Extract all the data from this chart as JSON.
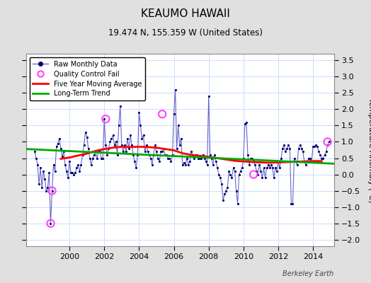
{
  "title": "KEAUMO HAWAII",
  "subtitle": "19.474 N, 155.359 W (United States)",
  "ylabel": "Temperature Anomaly (°C)",
  "watermark": "Berkeley Earth",
  "xlim": [
    1997.5,
    2015.2
  ],
  "ylim": [
    -2.2,
    3.7
  ],
  "yticks": [
    -2,
    -1.5,
    -1,
    -0.5,
    0,
    0.5,
    1,
    1.5,
    2,
    2.5,
    3,
    3.5
  ],
  "xticks": [
    2000,
    2002,
    2004,
    2006,
    2008,
    2010,
    2012,
    2014
  ],
  "fig_bg_color": "#e0e0e0",
  "plot_bg_color": "#ffffff",
  "raw_dot_color": "#000066",
  "raw_line_color": "#6666cc",
  "ma_color": "#ff0000",
  "trend_color": "#00aa00",
  "qc_color": "#ff44ff",
  "grid_color": "#ccddff",
  "raw_x": [
    1998.0,
    1998.083,
    1998.167,
    1998.25,
    1998.333,
    1998.417,
    1998.5,
    1998.583,
    1998.667,
    1998.75,
    1998.833,
    1998.917,
    1999.0,
    1999.083,
    1999.167,
    1999.25,
    1999.333,
    1999.417,
    1999.5,
    1999.583,
    1999.667,
    1999.75,
    1999.833,
    1999.917,
    2000.0,
    2000.083,
    2000.167,
    2000.25,
    2000.333,
    2000.417,
    2000.5,
    2000.583,
    2000.667,
    2000.75,
    2000.833,
    2000.917,
    2001.0,
    2001.083,
    2001.167,
    2001.25,
    2001.333,
    2001.417,
    2001.5,
    2001.583,
    2001.667,
    2001.75,
    2001.833,
    2001.917,
    2002.0,
    2002.083,
    2002.167,
    2002.25,
    2002.333,
    2002.417,
    2002.5,
    2002.583,
    2002.667,
    2002.75,
    2002.833,
    2002.917,
    2003.0,
    2003.083,
    2003.167,
    2003.25,
    2003.333,
    2003.417,
    2003.5,
    2003.583,
    2003.667,
    2003.75,
    2003.833,
    2003.917,
    2004.0,
    2004.083,
    2004.167,
    2004.25,
    2004.333,
    2004.417,
    2004.5,
    2004.583,
    2004.667,
    2004.75,
    2004.833,
    2004.917,
    2005.0,
    2005.083,
    2005.167,
    2005.25,
    2005.333,
    2005.417,
    2005.5,
    2005.583,
    2005.667,
    2005.75,
    2005.833,
    2005.917,
    2006.0,
    2006.083,
    2006.167,
    2006.25,
    2006.333,
    2006.417,
    2006.5,
    2006.583,
    2006.667,
    2006.75,
    2006.833,
    2006.917,
    2007.0,
    2007.083,
    2007.167,
    2007.25,
    2007.333,
    2007.417,
    2007.5,
    2007.583,
    2007.667,
    2007.75,
    2007.833,
    2007.917,
    2008.0,
    2008.083,
    2008.167,
    2008.25,
    2008.333,
    2008.417,
    2008.5,
    2008.583,
    2008.667,
    2008.75,
    2008.833,
    2008.917,
    2009.0,
    2009.083,
    2009.167,
    2009.25,
    2009.333,
    2009.417,
    2009.5,
    2009.583,
    2009.667,
    2009.75,
    2009.833,
    2009.917,
    2010.0,
    2010.083,
    2010.167,
    2010.25,
    2010.333,
    2010.417,
    2010.5,
    2010.583,
    2010.667,
    2010.75,
    2010.833,
    2010.917,
    2011.0,
    2011.083,
    2011.167,
    2011.25,
    2011.333,
    2011.417,
    2011.5,
    2011.583,
    2011.667,
    2011.75,
    2011.833,
    2011.917,
    2012.0,
    2012.083,
    2012.167,
    2012.25,
    2012.333,
    2012.417,
    2012.5,
    2012.583,
    2012.667,
    2012.75,
    2012.833,
    2012.917,
    2013.0,
    2013.083,
    2013.167,
    2013.25,
    2013.333,
    2013.417,
    2013.5,
    2013.583,
    2013.667,
    2013.75,
    2013.833,
    2013.917,
    2014.0,
    2014.083,
    2014.167,
    2014.25,
    2014.333,
    2014.417,
    2014.5,
    2014.583,
    2014.667,
    2014.75,
    2014.833,
    2014.917
  ],
  "raw_y": [
    0.7,
    0.5,
    0.3,
    -0.3,
    0.2,
    -0.4,
    0.1,
    -0.15,
    -0.5,
    -0.4,
    0.05,
    -1.5,
    -0.5,
    0.3,
    0.1,
    0.85,
    0.95,
    1.1,
    0.8,
    0.55,
    0.7,
    0.3,
    0.1,
    -0.1,
    0.4,
    0.05,
    0.05,
    0.0,
    0.05,
    0.2,
    0.3,
    0.1,
    0.3,
    0.6,
    0.9,
    1.3,
    1.15,
    0.8,
    0.5,
    0.3,
    0.5,
    0.6,
    0.7,
    0.5,
    0.7,
    0.7,
    0.5,
    0.5,
    1.7,
    0.9,
    0.6,
    0.8,
    1.0,
    1.1,
    1.2,
    0.9,
    1.0,
    0.6,
    1.5,
    2.1,
    0.9,
    0.7,
    0.9,
    0.7,
    1.1,
    0.8,
    1.2,
    0.9,
    0.6,
    0.4,
    0.2,
    0.6,
    1.9,
    1.5,
    1.1,
    1.2,
    0.7,
    0.9,
    0.7,
    0.6,
    0.5,
    0.3,
    0.6,
    0.9,
    0.7,
    0.5,
    0.4,
    0.7,
    0.7,
    0.8,
    0.6,
    0.6,
    0.5,
    0.5,
    0.4,
    0.6,
    1.85,
    2.6,
    0.8,
    1.5,
    0.9,
    1.1,
    0.3,
    0.35,
    0.3,
    0.5,
    0.3,
    0.4,
    0.7,
    0.6,
    0.5,
    0.6,
    0.6,
    0.5,
    0.5,
    0.5,
    0.6,
    0.5,
    0.4,
    0.3,
    2.4,
    0.6,
    0.5,
    0.3,
    0.6,
    0.4,
    0.2,
    0.0,
    -0.1,
    -0.3,
    -0.8,
    -0.6,
    -0.5,
    -0.4,
    0.1,
    0.0,
    -0.1,
    0.2,
    0.1,
    -0.5,
    -0.9,
    0.0,
    0.1,
    0.2,
    0.5,
    1.55,
    1.6,
    0.6,
    0.3,
    0.5,
    0.5,
    0.4,
    0.3,
    0.1,
    0.0,
    0.3,
    0.1,
    -0.1,
    0.2,
    -0.1,
    0.2,
    0.3,
    0.2,
    0.3,
    0.2,
    -0.1,
    0.2,
    0.1,
    0.4,
    0.2,
    0.5,
    0.8,
    0.9,
    0.7,
    0.8,
    0.9,
    0.8,
    -0.9,
    -0.9,
    0.5,
    0.4,
    0.3,
    0.8,
    0.9,
    0.8,
    0.7,
    0.4,
    0.3,
    0.4,
    0.5,
    0.5,
    0.4,
    0.85,
    0.85,
    0.9,
    0.85,
    0.7,
    0.6,
    0.5,
    0.5,
    0.6,
    0.7,
    0.9,
    1.0
  ],
  "qc_x": [
    1998.917,
    1999.0,
    2002.083,
    2005.333,
    2010.583,
    2014.833
  ],
  "qc_y": [
    -1.5,
    -0.5,
    1.7,
    1.85,
    0.0,
    1.0
  ],
  "ma_x": [
    1999.5,
    2000.0,
    2000.5,
    2001.0,
    2001.5,
    2002.0,
    2002.5,
    2003.0,
    2003.5,
    2004.0,
    2004.5,
    2005.0,
    2005.5,
    2006.0,
    2006.5,
    2007.0,
    2007.5,
    2008.0,
    2008.5,
    2009.0,
    2009.5,
    2010.0,
    2010.5,
    2011.0,
    2011.5,
    2012.0,
    2012.5,
    2013.0,
    2013.5,
    2014.0,
    2014.5
  ],
  "ma_y": [
    0.48,
    0.52,
    0.58,
    0.64,
    0.72,
    0.78,
    0.82,
    0.85,
    0.84,
    0.85,
    0.84,
    0.82,
    0.78,
    0.74,
    0.65,
    0.6,
    0.57,
    0.54,
    0.5,
    0.46,
    0.42,
    0.4,
    0.38,
    0.37,
    0.36,
    0.37,
    0.38,
    0.39,
    0.4,
    0.41,
    0.41
  ],
  "trend_x": [
    1997.5,
    2015.2
  ],
  "trend_y": [
    0.78,
    0.33
  ]
}
